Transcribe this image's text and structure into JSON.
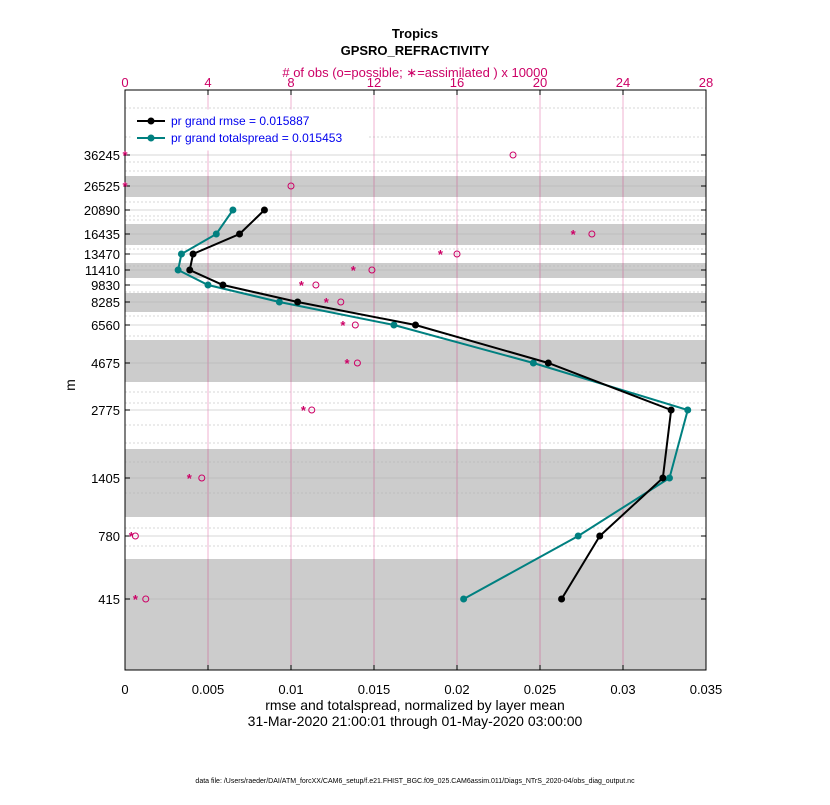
{
  "chart_data": {
    "type": "line",
    "title": "Tropics",
    "subtitle": "GPSRO_REFRACTIVITY",
    "top_axis_label": "# of obs (o=possible; ∗=assimilated ) x 10000",
    "top_axis_range": [
      0,
      28
    ],
    "top_ticks": [
      "0",
      "4",
      "8",
      "12",
      "16",
      "20",
      "24",
      "28"
    ],
    "xlabel": "rmse and totalspread, normalized by layer mean",
    "date_range": "31-Mar-2020 21:00:01 through 01-May-2020 03:00:00",
    "ylabel": "m",
    "xlim": [
      0,
      0.035
    ],
    "x_ticks": [
      "0",
      "0.005",
      "0.01",
      "0.015",
      "0.02",
      "0.025",
      "0.03",
      "0.035"
    ],
    "y_levels": [
      "36245",
      "26525",
      "20890",
      "16435",
      "13470",
      "11410",
      "9830",
      "8285",
      "6560",
      "4675",
      "2775",
      "1405",
      "780",
      "415"
    ],
    "series": [
      {
        "name": "pr grand rmse",
        "legend": "pr grand rmse = 0.015887",
        "color": "#000000",
        "values": [
          null,
          null,
          0.0084,
          0.0069,
          0.0041,
          0.0039,
          0.0059,
          0.0104,
          0.0175,
          0.0255,
          0.0329,
          0.0324,
          0.0286,
          0.0263
        ]
      },
      {
        "name": "pr grand totalspread",
        "legend": "pr grand totalspread = 0.015453",
        "color": "#008080",
        "values": [
          null,
          null,
          0.0065,
          0.0055,
          0.0034,
          0.0032,
          0.005,
          0.0093,
          0.0162,
          0.0246,
          0.0339,
          0.0328,
          0.0273,
          0.0204
        ]
      }
    ],
    "obs_possible": [
      18.7,
      8.0,
      null,
      22.5,
      16.0,
      11.9,
      9.2,
      10.4,
      11.1,
      11.2,
      9.0,
      3.7,
      0.5,
      1.0
    ],
    "obs_assimilated": [
      0,
      0,
      null,
      21.6,
      15.2,
      11.0,
      8.5,
      9.7,
      10.5,
      10.7,
      8.6,
      3.1,
      0.3,
      0.5
    ],
    "grid": true,
    "legend_position": "top-left",
    "colors": {
      "obs": "#cc0066",
      "grid": "#cc0066",
      "shade": "#cccccc",
      "legend_text": "#0000ee"
    }
  },
  "footer": "data file: /Users/raeder/DAI/ATM_forcXX/CAM6_setup/f.e21.FHIST_BGC.f09_025.CAM6assim.011/Diags_NTrS_2020-04/obs_diag_output.nc"
}
